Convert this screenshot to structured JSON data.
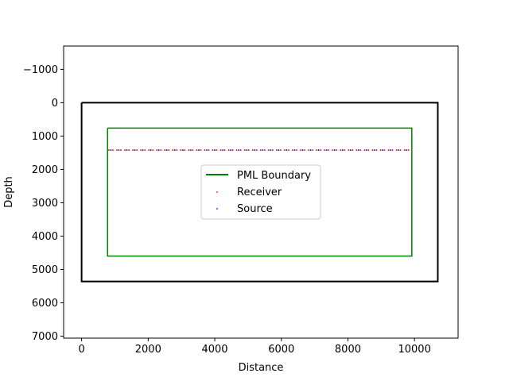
{
  "chart_data": {
    "type": "scatter",
    "title": "",
    "xlabel": "Distance",
    "ylabel": "Depth",
    "xlim": [
      -540,
      11310
    ],
    "ylim": [
      7060,
      -1700
    ],
    "y_inverted": true,
    "grid": false,
    "xticks": [
      0,
      2000,
      4000,
      6000,
      8000,
      10000
    ],
    "xtick_labels": [
      "0",
      "2000",
      "4000",
      "6000",
      "8000",
      "10000"
    ],
    "yticks": [
      -1000,
      0,
      1000,
      2000,
      3000,
      4000,
      5000,
      6000,
      7000
    ],
    "ytick_labels": [
      "−1000",
      "0",
      "1000",
      "2000",
      "3000",
      "4000",
      "5000",
      "6000",
      "7000"
    ],
    "model_boundary": {
      "x": [
        0,
        10700,
        10700,
        0,
        0
      ],
      "y": [
        0,
        0,
        5360,
        5360,
        0
      ],
      "color": "#000000"
    },
    "series": [
      {
        "name": "PML Boundary",
        "kind": "line",
        "color": "#008000",
        "x": [
          780,
          9920,
          9920,
          780,
          780
        ],
        "y": [
          760,
          760,
          4600,
          4600,
          760
        ]
      },
      {
        "name": "Receiver",
        "kind": "points",
        "color": "#ff0000",
        "y_const": 1420,
        "x_start": 820,
        "x_end": 9880,
        "x_step": 120
      },
      {
        "name": "Source",
        "kind": "points",
        "color": "#0000ff",
        "y_const": 1420,
        "x_start": 880,
        "x_end": 9880,
        "x_step": 240
      }
    ],
    "legend_position": "center"
  }
}
